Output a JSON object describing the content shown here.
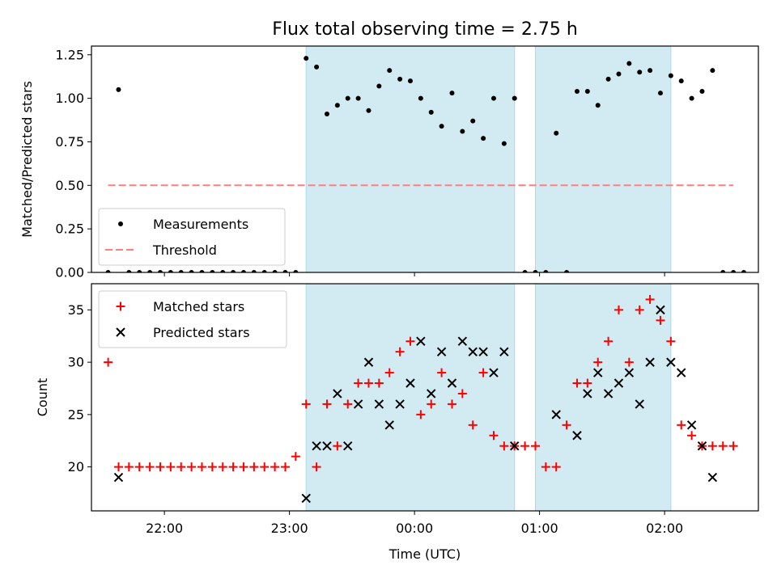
{
  "title": "Flux total observing time = 2.75 h",
  "colors": {
    "shade": "#add8e6",
    "measurement": "#000000",
    "threshold": "#ff7f7f",
    "matched": "#ff0000",
    "predicted": "#000000"
  },
  "xaxis": {
    "label": "Time (UTC)",
    "ticks": [
      "22:00",
      "23:00",
      "00:00",
      "01:00",
      "02:00"
    ],
    "range": [
      "21:25",
      "02:45"
    ]
  },
  "chart_data": [
    {
      "type": "scatter",
      "panel": "top",
      "ylabel": "Matched/Predicted stars",
      "ylim": [
        0,
        1.3
      ],
      "yticks": [
        "0.00",
        "0.25",
        "0.50",
        "0.75",
        "1.00",
        "1.25"
      ],
      "legend": [
        "Measurements",
        "Threshold"
      ],
      "legend_position": "lower-left",
      "shaded_intervals": [
        [
          "23:08",
          "00:48"
        ],
        [
          "00:58",
          "02:03"
        ]
      ],
      "threshold": {
        "name": "Threshold",
        "y": 0.5,
        "x_range": [
          "21:33",
          "02:33"
        ]
      },
      "series": [
        {
          "name": "Measurements",
          "points": [
            [
              "21:33",
              0
            ],
            [
              "21:38",
              1.05
            ],
            [
              "21:43",
              0
            ],
            [
              "21:48",
              0
            ],
            [
              "21:53",
              0
            ],
            [
              "21:58",
              0
            ],
            [
              "22:03",
              0
            ],
            [
              "22:08",
              0
            ],
            [
              "22:13",
              0
            ],
            [
              "22:18",
              0
            ],
            [
              "22:23",
              0
            ],
            [
              "22:28",
              0
            ],
            [
              "22:33",
              0
            ],
            [
              "22:38",
              0
            ],
            [
              "22:43",
              0
            ],
            [
              "22:48",
              0
            ],
            [
              "22:53",
              0
            ],
            [
              "22:58",
              0
            ],
            [
              "23:03",
              0
            ],
            [
              "23:08",
              1.23
            ],
            [
              "23:13",
              1.18
            ],
            [
              "23:18",
              0.91
            ],
            [
              "23:23",
              0.96
            ],
            [
              "23:28",
              1.0
            ],
            [
              "23:33",
              1.0
            ],
            [
              "23:38",
              0.93
            ],
            [
              "23:43",
              1.07
            ],
            [
              "23:48",
              1.16
            ],
            [
              "23:53",
              1.11
            ],
            [
              "23:58",
              1.1
            ],
            [
              "00:03",
              1.0
            ],
            [
              "00:08",
              0.92
            ],
            [
              "00:13",
              0.84
            ],
            [
              "00:18",
              1.03
            ],
            [
              "00:23",
              0.81
            ],
            [
              "00:28",
              0.87
            ],
            [
              "00:33",
              0.77
            ],
            [
              "00:38",
              1.0
            ],
            [
              "00:43",
              0.74
            ],
            [
              "00:48",
              1.0
            ],
            [
              "00:53",
              0
            ],
            [
              "00:58",
              0
            ],
            [
              "01:03",
              0
            ],
            [
              "01:08",
              0.8
            ],
            [
              "01:13",
              0
            ],
            [
              "01:18",
              1.04
            ],
            [
              "01:23",
              1.04
            ],
            [
              "01:28",
              0.96
            ],
            [
              "01:33",
              1.11
            ],
            [
              "01:38",
              1.14
            ],
            [
              "01:43",
              1.2
            ],
            [
              "01:48",
              1.15
            ],
            [
              "01:53",
              1.16
            ],
            [
              "01:58",
              1.03
            ],
            [
              "02:03",
              1.13
            ],
            [
              "02:08",
              1.1
            ],
            [
              "02:13",
              1.0
            ],
            [
              "02:18",
              1.04
            ],
            [
              "02:23",
              1.16
            ],
            [
              "02:28",
              0
            ],
            [
              "02:33",
              0
            ],
            [
              "02:38",
              0
            ]
          ]
        }
      ]
    },
    {
      "type": "scatter",
      "panel": "bottom",
      "ylabel": "Count",
      "ylim": [
        15.8,
        37.5
      ],
      "yticks": [
        "20",
        "25",
        "30",
        "35"
      ],
      "legend": [
        "Matched stars",
        "Predicted stars"
      ],
      "legend_position": "upper-left",
      "shaded_intervals": [
        [
          "23:08",
          "00:48"
        ],
        [
          "00:58",
          "02:03"
        ]
      ],
      "series": [
        {
          "name": "Matched stars",
          "marker": "+",
          "points": [
            [
              "21:33",
              30
            ],
            [
              "21:38",
              20
            ],
            [
              "21:43",
              20
            ],
            [
              "21:48",
              20
            ],
            [
              "21:53",
              20
            ],
            [
              "21:58",
              20
            ],
            [
              "22:03",
              20
            ],
            [
              "22:08",
              20
            ],
            [
              "22:13",
              20
            ],
            [
              "22:18",
              20
            ],
            [
              "22:23",
              20
            ],
            [
              "22:28",
              20
            ],
            [
              "22:33",
              20
            ],
            [
              "22:38",
              20
            ],
            [
              "22:43",
              20
            ],
            [
              "22:48",
              20
            ],
            [
              "22:53",
              20
            ],
            [
              "22:58",
              20
            ],
            [
              "23:03",
              21
            ],
            [
              "23:08",
              26
            ],
            [
              "23:13",
              20
            ],
            [
              "23:18",
              26
            ],
            [
              "23:23",
              22
            ],
            [
              "23:28",
              26
            ],
            [
              "23:33",
              28
            ],
            [
              "23:38",
              28
            ],
            [
              "23:43",
              28
            ],
            [
              "23:48",
              29
            ],
            [
              "23:53",
              31
            ],
            [
              "23:58",
              32
            ],
            [
              "00:03",
              25
            ],
            [
              "00:08",
              26
            ],
            [
              "00:13",
              29
            ],
            [
              "00:18",
              26
            ],
            [
              "00:23",
              27
            ],
            [
              "00:28",
              24
            ],
            [
              "00:33",
              29
            ],
            [
              "00:38",
              23
            ],
            [
              "00:43",
              22
            ],
            [
              "00:48",
              22
            ],
            [
              "00:53",
              22
            ],
            [
              "00:58",
              22
            ],
            [
              "01:03",
              20
            ],
            [
              "01:08",
              20
            ],
            [
              "01:13",
              24
            ],
            [
              "01:18",
              28
            ],
            [
              "01:23",
              28
            ],
            [
              "01:28",
              30
            ],
            [
              "01:33",
              32
            ],
            [
              "01:38",
              35
            ],
            [
              "01:43",
              30
            ],
            [
              "01:48",
              35
            ],
            [
              "01:53",
              36
            ],
            [
              "01:58",
              34
            ],
            [
              "02:03",
              32
            ],
            [
              "02:08",
              24
            ],
            [
              "02:13",
              23
            ],
            [
              "02:18",
              22
            ],
            [
              "02:23",
              22
            ],
            [
              "02:28",
              22
            ],
            [
              "02:33",
              22
            ]
          ]
        },
        {
          "name": "Predicted stars",
          "marker": "x",
          "points": [
            [
              "21:38",
              19
            ],
            [
              "23:08",
              17
            ],
            [
              "23:13",
              22
            ],
            [
              "23:18",
              22
            ],
            [
              "23:23",
              27
            ],
            [
              "23:28",
              22
            ],
            [
              "23:33",
              26
            ],
            [
              "23:38",
              30
            ],
            [
              "23:43",
              26
            ],
            [
              "23:48",
              24
            ],
            [
              "23:53",
              26
            ],
            [
              "23:58",
              28
            ],
            [
              "00:03",
              32
            ],
            [
              "00:08",
              27
            ],
            [
              "00:13",
              31
            ],
            [
              "00:18",
              28
            ],
            [
              "00:23",
              32
            ],
            [
              "00:28",
              31
            ],
            [
              "00:33",
              31
            ],
            [
              "00:38",
              29
            ],
            [
              "00:43",
              31
            ],
            [
              "00:48",
              22
            ],
            [
              "01:08",
              25
            ],
            [
              "01:18",
              23
            ],
            [
              "01:23",
              27
            ],
            [
              "01:28",
              29
            ],
            [
              "01:33",
              27
            ],
            [
              "01:38",
              28
            ],
            [
              "01:43",
              29
            ],
            [
              "01:48",
              26
            ],
            [
              "01:53",
              30
            ],
            [
              "01:58",
              35
            ],
            [
              "02:03",
              30
            ],
            [
              "02:08",
              29
            ],
            [
              "02:13",
              24
            ],
            [
              "02:18",
              22
            ],
            [
              "02:23",
              19
            ]
          ]
        }
      ]
    }
  ]
}
